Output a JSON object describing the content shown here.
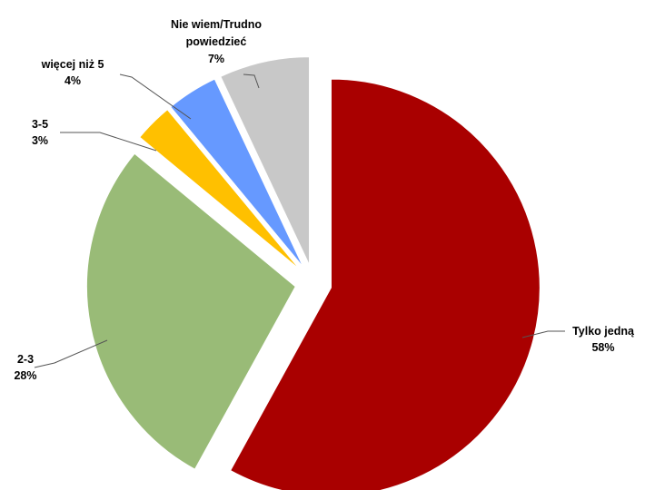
{
  "chart_data": {
    "type": "pie",
    "title": "",
    "slices": [
      {
        "label": "Tylko jedną",
        "value": 58,
        "display": "58%",
        "color": "#a90000"
      },
      {
        "label": "2-3",
        "value": 28,
        "display": "28%",
        "color": "#99bb77"
      },
      {
        "label": "3-5",
        "value": 3,
        "display": "3%",
        "color": "#ffc000"
      },
      {
        "label": "więcej niż 5",
        "value": 4,
        "display": "4%",
        "color": "#6699ff"
      },
      {
        "label": "Nie wiem/Trudno powiedzieć",
        "value": 7,
        "display": "7%",
        "color": "#c8c8c8"
      }
    ],
    "label_lines": {
      "tylko": [
        "Tylko jedną"
      ],
      "s23": [
        "2-3"
      ],
      "s35": [
        "3-5"
      ],
      "wiecej": [
        "więcej niż 5"
      ],
      "niewiem": [
        "Nie wiem/Trudno",
        "powiedzieć"
      ]
    },
    "legend": "none",
    "exploded": true
  }
}
